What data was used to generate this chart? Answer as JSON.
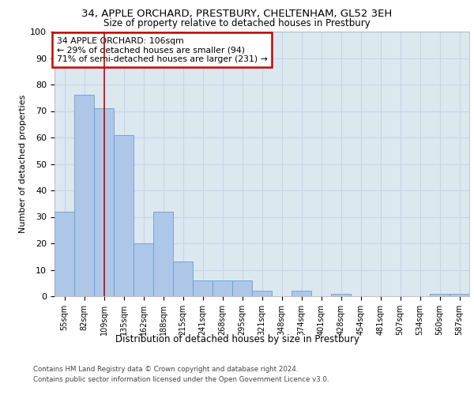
{
  "title1": "34, APPLE ORCHARD, PRESTBURY, CHELTENHAM, GL52 3EH",
  "title2": "Size of property relative to detached houses in Prestbury",
  "xlabel": "Distribution of detached houses by size in Prestbury",
  "ylabel": "Number of detached properties",
  "categories": [
    "55sqm",
    "82sqm",
    "109sqm",
    "135sqm",
    "162sqm",
    "188sqm",
    "215sqm",
    "241sqm",
    "268sqm",
    "295sqm",
    "321sqm",
    "348sqm",
    "374sqm",
    "401sqm",
    "428sqm",
    "454sqm",
    "481sqm",
    "507sqm",
    "534sqm",
    "560sqm",
    "587sqm"
  ],
  "values": [
    32,
    76,
    71,
    61,
    20,
    32,
    13,
    6,
    6,
    6,
    2,
    0,
    2,
    0,
    1,
    0,
    0,
    0,
    0,
    1,
    1
  ],
  "bar_color": "#aec6e8",
  "bar_edge_color": "#6a9fd0",
  "vline_x_index": 2,
  "vline_color": "#cc0000",
  "annotation_text": "34 APPLE ORCHARD: 106sqm\n← 29% of detached houses are smaller (94)\n71% of semi-detached houses are larger (231) →",
  "annotation_box_facecolor": "#ffffff",
  "annotation_box_edgecolor": "#cc0000",
  "ylim": [
    0,
    100
  ],
  "yticks": [
    0,
    10,
    20,
    30,
    40,
    50,
    60,
    70,
    80,
    90,
    100
  ],
  "grid_color": "#c8d4e8",
  "bg_color": "#dce8f0",
  "footer1": "Contains HM Land Registry data © Crown copyright and database right 2024.",
  "footer2": "Contains public sector information licensed under the Open Government Licence v3.0."
}
